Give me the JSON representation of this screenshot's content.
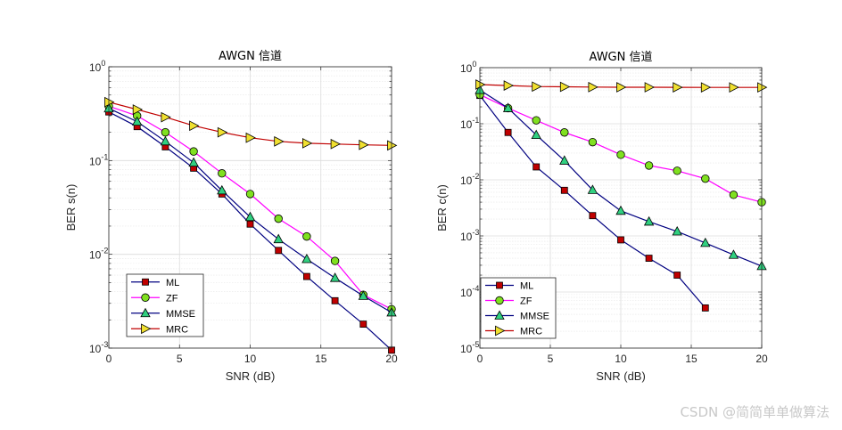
{
  "chart_data": [
    {
      "type": "line",
      "title": "AWGN 信道",
      "xlabel": "SNR (dB)",
      "ylabel": "BER s(n)",
      "yscale": "log",
      "xlim": [
        0,
        20
      ],
      "ylim": [
        0.001,
        1
      ],
      "xticks": [
        "0",
        "5",
        "10",
        "15",
        "20"
      ],
      "ytick_exponents": [
        "0",
        "-1",
        "-2",
        "-3"
      ],
      "grid": true,
      "legend_position": "bottom-left",
      "series": [
        {
          "name": "ML",
          "color": "#000080",
          "marker": "square",
          "marker_color": "#c00000",
          "x": [
            0,
            2,
            4,
            6,
            8,
            10,
            12,
            14,
            16,
            18,
            20
          ],
          "y": [
            0.33,
            0.23,
            0.14,
            0.083,
            0.044,
            0.021,
            0.011,
            0.0058,
            0.0032,
            0.0018,
            0.00095
          ]
        },
        {
          "name": "ZF",
          "color": "#ff00ff",
          "marker": "circle",
          "marker_color": "#80e020",
          "x": [
            0,
            2,
            4,
            6,
            8,
            10,
            12,
            14,
            16,
            18,
            20
          ],
          "y": [
            0.38,
            0.3,
            0.2,
            0.125,
            0.073,
            0.044,
            0.024,
            0.0155,
            0.0085,
            0.0037,
            0.0026
          ]
        },
        {
          "name": "MMSE",
          "color": "#000080",
          "marker": "triangle",
          "marker_color": "#30d080",
          "x": [
            0,
            2,
            4,
            6,
            8,
            10,
            12,
            14,
            16,
            18,
            20
          ],
          "y": [
            0.36,
            0.26,
            0.16,
            0.095,
            0.048,
            0.025,
            0.0145,
            0.0089,
            0.0056,
            0.0036,
            0.0024
          ]
        },
        {
          "name": "MRC",
          "color": "#c00000",
          "marker": "triangle-right",
          "marker_color": "#f0e030",
          "x": [
            0,
            2,
            4,
            6,
            8,
            10,
            12,
            14,
            16,
            18,
            20
          ],
          "y": [
            0.42,
            0.35,
            0.29,
            0.235,
            0.2,
            0.175,
            0.16,
            0.153,
            0.15,
            0.147,
            0.145
          ]
        }
      ]
    },
    {
      "type": "line",
      "title": "AWGN 信道",
      "xlabel": "SNR (dB)",
      "ylabel": "BER c(n)",
      "yscale": "log",
      "xlim": [
        0,
        20
      ],
      "ylim": [
        1e-05,
        1
      ],
      "xticks": [
        "0",
        "5",
        "10",
        "15",
        "20"
      ],
      "ytick_exponents": [
        "0",
        "-1",
        "-2",
        "-3",
        "-4",
        "-5"
      ],
      "grid": true,
      "legend_position": "bottom-left",
      "series": [
        {
          "name": "ML",
          "color": "#000080",
          "marker": "square",
          "marker_color": "#c00000",
          "x": [
            0,
            2,
            4,
            6,
            8,
            10,
            12,
            14,
            16
          ],
          "y": [
            0.32,
            0.07,
            0.017,
            0.0065,
            0.0023,
            0.00085,
            0.0004,
            0.0002,
            5.2e-05
          ]
        },
        {
          "name": "ZF",
          "color": "#ff00ff",
          "marker": "circle",
          "marker_color": "#80e020",
          "x": [
            0,
            2,
            4,
            6,
            8,
            10,
            12,
            14,
            16,
            18,
            20
          ],
          "y": [
            0.33,
            0.19,
            0.115,
            0.07,
            0.047,
            0.028,
            0.018,
            0.0145,
            0.0105,
            0.0054,
            0.004
          ]
        },
        {
          "name": "MMSE",
          "color": "#000080",
          "marker": "triangle",
          "marker_color": "#30d080",
          "x": [
            0,
            2,
            4,
            6,
            8,
            10,
            12,
            14,
            16,
            18,
            20
          ],
          "y": [
            0.4,
            0.19,
            0.063,
            0.022,
            0.0066,
            0.0028,
            0.0018,
            0.0012,
            0.00075,
            0.00046,
            0.00029
          ]
        },
        {
          "name": "MRC",
          "color": "#c00000",
          "marker": "triangle-right",
          "marker_color": "#f0e030",
          "x": [
            0,
            2,
            4,
            6,
            8,
            10,
            12,
            14,
            16,
            18,
            20
          ],
          "y": [
            0.5,
            0.48,
            0.46,
            0.455,
            0.45,
            0.448,
            0.447,
            0.446,
            0.445,
            0.445,
            0.445
          ]
        }
      ]
    }
  ],
  "watermark": "CSDN @简简单单做算法"
}
